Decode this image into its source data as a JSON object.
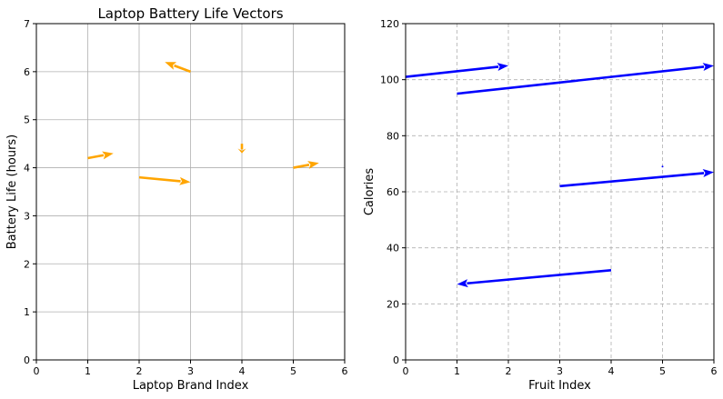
{
  "chart_data": [
    {
      "type": "quiver",
      "title": "Laptop Battery Life Vectors",
      "xlabel": "Laptop Brand Index",
      "ylabel": "Battery Life (hours)",
      "xlim": [
        0,
        6
      ],
      "ylim": [
        0,
        7
      ],
      "xticks": [
        "0",
        "1",
        "2",
        "3",
        "4",
        "5",
        "6"
      ],
      "yticks": [
        "0",
        "1",
        "2",
        "3",
        "4",
        "5",
        "6",
        "7"
      ],
      "grid": true,
      "grid_style": "solid",
      "color": "#ffa500",
      "vectors": [
        {
          "x": 1,
          "y": 4.2,
          "u": 0.5,
          "v": 0.1
        },
        {
          "x": 2,
          "y": 3.8,
          "u": 1.0,
          "v": -0.1
        },
        {
          "x": 3,
          "y": 6.0,
          "u": -0.5,
          "v": 0.2
        },
        {
          "x": 4,
          "y": 4.5,
          "u": 0.0,
          "v": -0.2
        },
        {
          "x": 5,
          "y": 4.0,
          "u": 0.5,
          "v": 0.1
        }
      ]
    },
    {
      "type": "quiver",
      "title": "",
      "xlabel": "Fruit Index",
      "ylabel": "Calories",
      "xlim": [
        0,
        6
      ],
      "ylim": [
        0,
        120
      ],
      "xticks": [
        "0",
        "1",
        "2",
        "3",
        "4",
        "5",
        "6"
      ],
      "yticks": [
        "0",
        "20",
        "40",
        "60",
        "80",
        "100",
        "120"
      ],
      "grid": true,
      "grid_style": "dashed",
      "color": "#0000ff",
      "vectors": [
        {
          "x": 0,
          "y": 101,
          "u": 2,
          "v": 4
        },
        {
          "x": 1,
          "y": 95,
          "u": 5,
          "v": 10
        },
        {
          "x": 3,
          "y": 62,
          "u": 3,
          "v": 5
        },
        {
          "x": 4,
          "y": 32,
          "u": -3,
          "v": -5
        },
        {
          "x": 5,
          "y": 69,
          "u": 0,
          "v": 0
        }
      ]
    }
  ]
}
